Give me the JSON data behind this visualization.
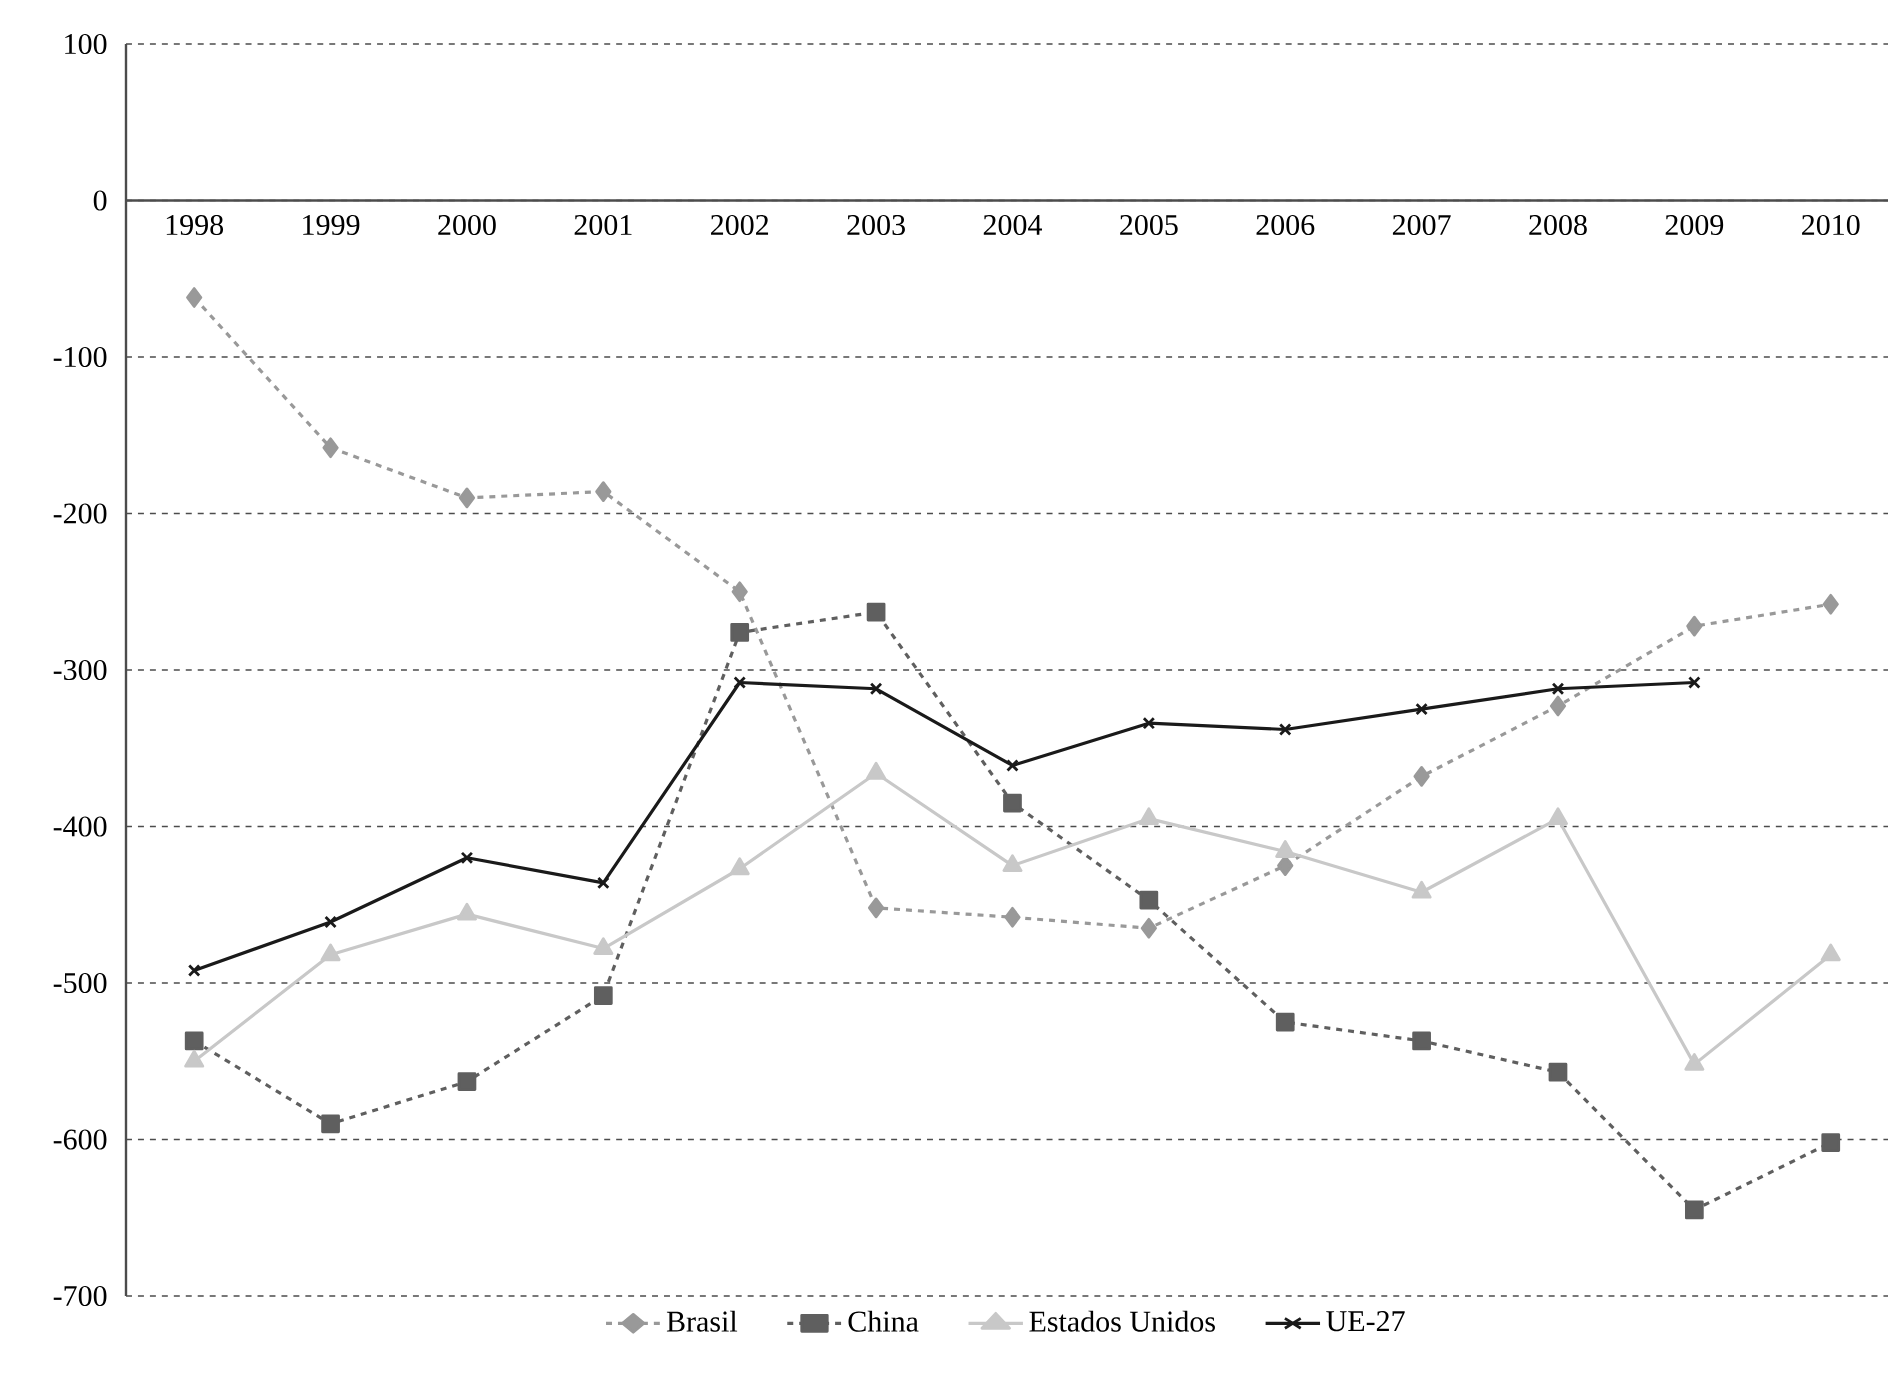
{
  "chart_data": {
    "type": "line",
    "categories": [
      "1998",
      "1999",
      "2000",
      "2001",
      "2002",
      "2003",
      "2004",
      "2005",
      "2006",
      "2007",
      "2008",
      "2009",
      "2010"
    ],
    "series": [
      {
        "name": "Brasil",
        "color": "#999999",
        "marker": "diamond",
        "line_style": "dashed",
        "values": [
          -62,
          -158,
          -190,
          -186,
          -250,
          -452,
          -458,
          -465,
          -425,
          -368,
          -323,
          -272,
          -258
        ]
      },
      {
        "name": "China",
        "color": "#5f5f5f",
        "marker": "square",
        "line_style": "dashed",
        "values": [
          -537,
          -590,
          -563,
          -508,
          -276,
          -263,
          -385,
          -447,
          -525,
          -537,
          -557,
          -645,
          -602
        ]
      },
      {
        "name": "Estados Unidos",
        "color": "#c8c8c8",
        "marker": "triangle",
        "line_style": "solid",
        "values": [
          -550,
          -482,
          -456,
          -478,
          -427,
          -366,
          -425,
          -395,
          -416,
          -442,
          -395,
          -552,
          -482
        ]
      },
      {
        "name": "UE-27",
        "color": "#1a1a1a",
        "marker": "cross",
        "line_style": "solid",
        "values": [
          -492,
          -461,
          -420,
          -436,
          -308,
          -312,
          -361,
          -334,
          -338,
          -325,
          -312,
          -308,
          null
        ]
      }
    ],
    "ylim": [
      -700,
      100
    ],
    "yticks": [
      -700,
      -600,
      -500,
      -400,
      -300,
      -200,
      -100,
      0,
      100
    ],
    "grid": "y",
    "legend": "bottom"
  }
}
